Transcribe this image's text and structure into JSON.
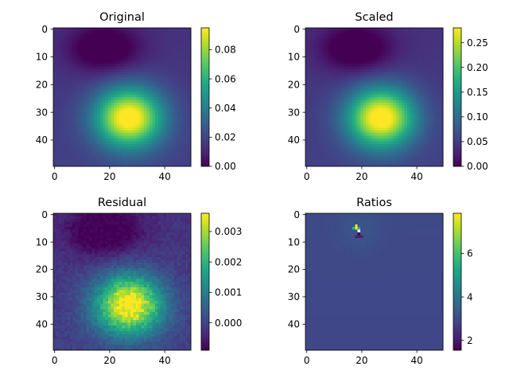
{
  "chart_data": [
    {
      "type": "heatmap",
      "title": "Original",
      "xlabel": "",
      "ylabel": "",
      "x_ticks": [
        0,
        20,
        40
      ],
      "y_ticks": [
        0,
        10,
        20,
        30,
        40
      ],
      "xlim": [
        -0.5,
        49.5
      ],
      "ylim": [
        49.5,
        -0.5
      ],
      "grid": false,
      "colormap": "viridis",
      "grid_size": [
        50,
        50
      ],
      "color_range": [
        0.0,
        0.095
      ],
      "colorbar_ticks": [
        "0.00",
        "0.02",
        "0.04",
        "0.06",
        "0.08"
      ],
      "colorbar_tick_values": [
        0.0,
        0.02,
        0.04,
        0.06,
        0.08
      ],
      "field": {
        "peak_center": [
          27,
          32
        ],
        "peak_value": 0.095,
        "min_center": [
          18,
          7
        ],
        "min_value": 0.0,
        "dark_band_row": 6,
        "noise": 0
      }
    },
    {
      "type": "heatmap",
      "title": "Scaled",
      "xlabel": "",
      "ylabel": "",
      "x_ticks": [
        0,
        20,
        40
      ],
      "y_ticks": [
        0,
        10,
        20,
        30,
        40
      ],
      "xlim": [
        -0.5,
        49.5
      ],
      "ylim": [
        49.5,
        -0.5
      ],
      "grid": false,
      "colormap": "viridis",
      "grid_size": [
        50,
        50
      ],
      "color_range": [
        0.0,
        0.28
      ],
      "colorbar_ticks": [
        "0.00",
        "0.05",
        "0.10",
        "0.15",
        "0.20",
        "0.25"
      ],
      "colorbar_tick_values": [
        0.0,
        0.05,
        0.1,
        0.15,
        0.2,
        0.25
      ],
      "field": {
        "peak_center": [
          27,
          32
        ],
        "peak_value": 0.28,
        "min_center": [
          18,
          7
        ],
        "min_value": 0.0,
        "dark_band_row": 6,
        "noise": 0
      }
    },
    {
      "type": "heatmap",
      "title": "Residual",
      "xlabel": "",
      "ylabel": "",
      "x_ticks": [
        0,
        20,
        40
      ],
      "y_ticks": [
        0,
        10,
        20,
        30,
        40
      ],
      "xlim": [
        -0.5,
        49.5
      ],
      "ylim": [
        49.5,
        -0.5
      ],
      "grid": false,
      "colormap": "viridis",
      "grid_size": [
        50,
        50
      ],
      "color_range": [
        -0.0009,
        0.0036
      ],
      "colorbar_ticks": [
        "0.000",
        "0.001",
        "0.002",
        "0.003"
      ],
      "colorbar_tick_values": [
        0.0,
        0.001,
        0.002,
        0.003
      ],
      "field": {
        "peak_center": [
          27,
          33
        ],
        "peak_value": 0.0036,
        "min_center": [
          18,
          6
        ],
        "min_value": -0.0009,
        "noise": 0.00035
      }
    },
    {
      "type": "heatmap",
      "title": "Ratios",
      "xlabel": "",
      "ylabel": "",
      "x_ticks": [
        0,
        20,
        40
      ],
      "y_ticks": [
        0,
        10,
        20,
        30,
        40
      ],
      "xlim": [
        -0.5,
        49.5
      ],
      "ylim": [
        49.5,
        -0.5
      ],
      "grid": false,
      "colormap": "viridis",
      "grid_size": [
        50,
        50
      ],
      "color_range": [
        1.55,
        7.85
      ],
      "colorbar_ticks": [
        "2",
        "4",
        "6"
      ],
      "colorbar_tick_values": [
        2,
        4,
        6
      ],
      "field": {
        "base_value": 2.95,
        "hot_cell": [
          18,
          5
        ],
        "hot_value": 7.8,
        "cold_cell": [
          19,
          7
        ],
        "cold_value": 1.6,
        "missing_cell": [
          19,
          6
        ]
      }
    }
  ]
}
